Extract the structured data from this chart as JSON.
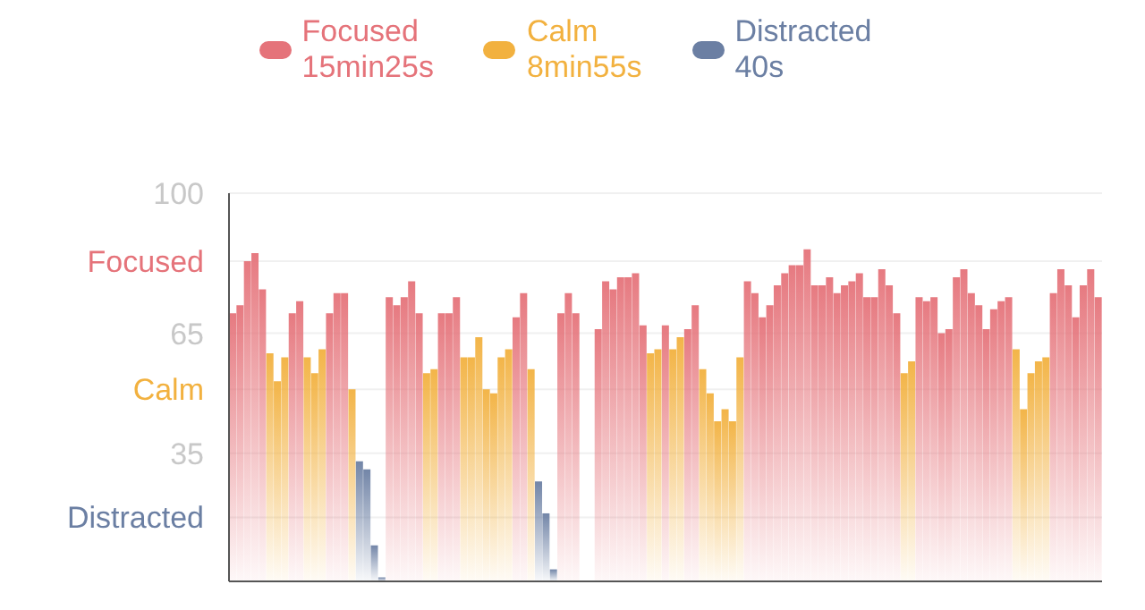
{
  "chart_data": {
    "type": "bar",
    "stacked": true,
    "legend": "top",
    "grid": "y",
    "ylim": [
      3,
      100
    ],
    "yticks": [
      {
        "value": 19,
        "label": "Distracted"
      },
      35,
      {
        "value": 51,
        "label": "Calm"
      },
      65,
      {
        "value": 83,
        "label": "Focused"
      },
      100
    ],
    "categories": [
      null,
      null,
      null,
      null,
      null,
      null,
      null,
      null,
      null,
      null,
      null,
      null,
      null,
      null,
      null,
      null,
      null,
      null,
      null,
      null,
      null,
      null,
      null,
      null,
      null,
      null,
      null,
      null,
      null,
      null,
      null,
      null,
      null,
      null,
      null,
      null,
      null,
      null,
      null,
      null,
      null,
      null,
      null,
      null,
      null,
      null,
      null,
      null,
      null,
      null,
      null,
      null,
      null,
      null,
      null,
      null,
      null,
      null,
      null,
      null,
      null,
      null,
      null,
      null,
      null,
      null,
      null,
      null,
      null,
      null,
      null,
      null,
      null,
      null,
      null,
      null,
      null,
      null,
      null,
      null,
      null,
      null,
      null,
      null,
      null,
      null,
      null,
      null,
      null,
      null,
      null,
      null,
      null,
      null,
      null,
      null,
      null,
      null,
      null,
      null,
      null,
      null,
      null,
      null,
      null,
      null,
      null,
      null,
      null,
      null,
      null,
      null,
      null,
      null,
      null,
      null,
      null
    ],
    "series": [
      {
        "name": "Focused 15min25s",
        "color": "#e5737a",
        "values": [
          70,
          72,
          83,
          85,
          76,
          null,
          null,
          null,
          70,
          73,
          null,
          null,
          null,
          70,
          75,
          75,
          null,
          null,
          null,
          null,
          null,
          74,
          72,
          74,
          78,
          70,
          null,
          null,
          70,
          70,
          74,
          null,
          null,
          null,
          null,
          null,
          null,
          null,
          69,
          75,
          null,
          null,
          null,
          null,
          70,
          75,
          70,
          null,
          null,
          66,
          78,
          76,
          79,
          79,
          80,
          67,
          null,
          null,
          67,
          null,
          null,
          66,
          72,
          null,
          null,
          null,
          null,
          null,
          null,
          78,
          75,
          69,
          72,
          77,
          80,
          82,
          82,
          86,
          77,
          77,
          79,
          75,
          77,
          78,
          80,
          74,
          74,
          81,
          77,
          70,
          null,
          null,
          74,
          73,
          74,
          65,
          66,
          79,
          81,
          75,
          72,
          66,
          71,
          73,
          74,
          null,
          null,
          null,
          null,
          null,
          75,
          81,
          77,
          69,
          77,
          81,
          74
        ]
      },
      {
        "name": "Calm 8min55s",
        "color": "#f2b13f",
        "values": [
          null,
          null,
          null,
          null,
          null,
          60,
          53,
          59,
          null,
          null,
          59,
          55,
          61,
          null,
          null,
          null,
          51,
          null,
          null,
          null,
          null,
          null,
          null,
          null,
          null,
          null,
          55,
          56,
          null,
          null,
          null,
          59,
          59,
          64,
          51,
          50,
          59,
          61,
          null,
          null,
          56,
          null,
          null,
          null,
          null,
          null,
          null,
          null,
          null,
          null,
          null,
          null,
          null,
          null,
          null,
          null,
          60,
          61,
          null,
          61,
          64,
          null,
          null,
          56,
          50,
          43,
          46,
          43,
          59,
          null,
          null,
          null,
          null,
          null,
          null,
          null,
          null,
          null,
          null,
          null,
          null,
          null,
          null,
          null,
          null,
          null,
          null,
          null,
          null,
          null,
          55,
          58,
          null,
          null,
          null,
          null,
          null,
          null,
          null,
          null,
          null,
          null,
          null,
          null,
          null,
          61,
          46,
          55,
          58,
          59,
          null,
          null,
          null,
          null,
          null,
          null,
          null
        ]
      },
      {
        "name": "Distracted 40s",
        "color": "#6b7fa3",
        "values": [
          null,
          null,
          null,
          null,
          null,
          null,
          null,
          null,
          null,
          null,
          null,
          null,
          null,
          null,
          null,
          null,
          null,
          33,
          31,
          12,
          4,
          null,
          null,
          null,
          null,
          null,
          null,
          null,
          null,
          null,
          null,
          null,
          null,
          null,
          null,
          null,
          null,
          null,
          null,
          null,
          null,
          28,
          20,
          6,
          null,
          null,
          null,
          null,
          null,
          null,
          null,
          null,
          null,
          null,
          null,
          null,
          null,
          null,
          null,
          null,
          null,
          null,
          null,
          null,
          null,
          null,
          null,
          null,
          null,
          null,
          null,
          null,
          null,
          null,
          null,
          null,
          null,
          null,
          null,
          null,
          null,
          null,
          null,
          null,
          null,
          null,
          null,
          null,
          null,
          null,
          null,
          null,
          null,
          null,
          null,
          null,
          null,
          null,
          null,
          null,
          null,
          null,
          null,
          null,
          null,
          null,
          null,
          null,
          null,
          null,
          null,
          null,
          null,
          null,
          null,
          null,
          null
        ]
      }
    ]
  }
}
